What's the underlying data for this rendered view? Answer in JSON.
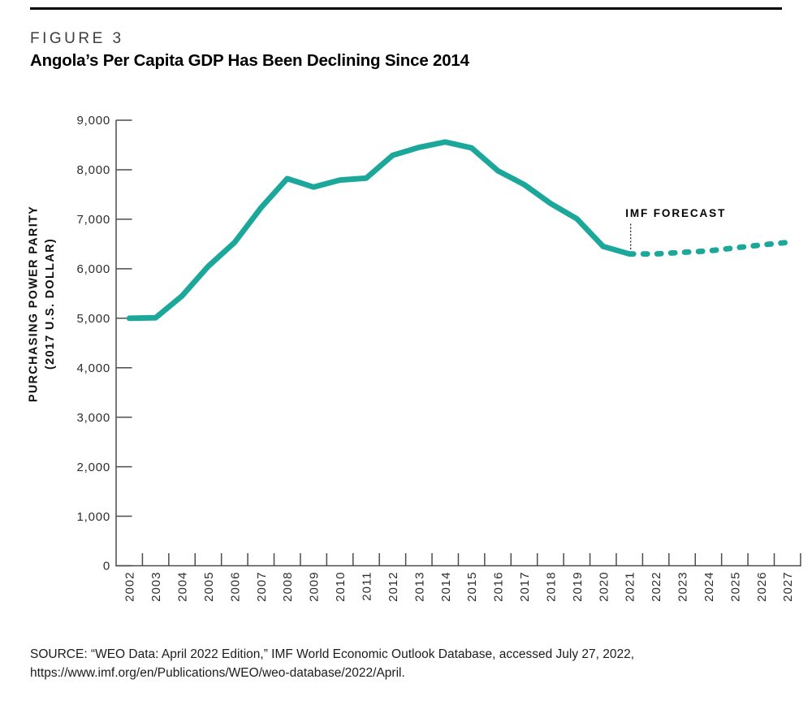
{
  "figure": {
    "label": "FIGURE 3",
    "title": "Angola’s Per Capita GDP Has Been Declining Since 2014"
  },
  "source": {
    "line1": "SOURCE: “WEO Data: April 2022 Edition,” IMF World Economic Outlook Database, accessed July 27, 2022,",
    "line2": "https://www.imf.org/en/Publications/WEO/weo-database/2022/April."
  },
  "chart_data": {
    "type": "line",
    "title": "Angola’s Per Capita GDP Has Been Declining Since 2014",
    "xlabel": "",
    "ylabel": [
      "PURCHASING POWER PARITY",
      "(2017 U.S. DOLLAR)"
    ],
    "ylim": [
      0,
      9000
    ],
    "yticks": [
      0,
      1000,
      2000,
      3000,
      4000,
      5000,
      6000,
      7000,
      8000,
      9000
    ],
    "ytick_labels": [
      "0",
      "1,000",
      "2,000",
      "3,000",
      "4,000",
      "5,000",
      "6,000",
      "7,000",
      "8,000",
      "9,000"
    ],
    "x_years": [
      2002,
      2003,
      2004,
      2005,
      2006,
      2007,
      2008,
      2009,
      2010,
      2011,
      2012,
      2013,
      2014,
      2015,
      2016,
      2017,
      2018,
      2019,
      2020,
      2021,
      2022,
      2023,
      2024,
      2025,
      2026,
      2027
    ],
    "grid": false,
    "legend": "none",
    "line_color": "#1BA89B",
    "series": [
      {
        "name": "historical",
        "style": "solid",
        "years": [
          2002,
          2003,
          2004,
          2005,
          2006,
          2007,
          2008,
          2009,
          2010,
          2011,
          2012,
          2013,
          2014,
          2015,
          2016,
          2017,
          2018,
          2019,
          2020,
          2021
        ],
        "values": [
          5000,
          5010,
          5450,
          6050,
          6530,
          7230,
          7820,
          7650,
          7790,
          7830,
          8290,
          8450,
          8560,
          8440,
          7980,
          7700,
          7320,
          7010,
          6450,
          6300
        ]
      },
      {
        "name": "forecast",
        "style": "dashed",
        "years": [
          2021,
          2022,
          2023,
          2024,
          2025,
          2026,
          2027
        ],
        "values": [
          6300,
          6300,
          6330,
          6360,
          6420,
          6480,
          6530
        ]
      }
    ],
    "annotation": {
      "label": "IMF FORECAST",
      "year": 2021
    }
  }
}
